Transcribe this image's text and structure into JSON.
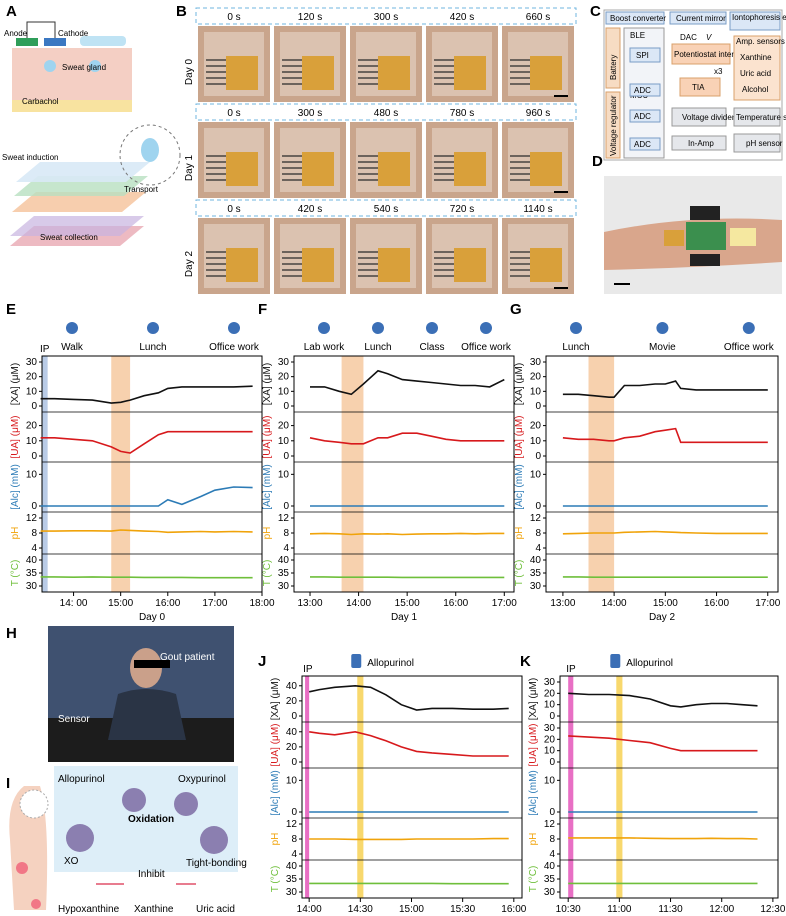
{
  "panels": {
    "A": {
      "label": "A",
      "anode": "Anode",
      "cathode": "Cathode",
      "sweat_gland": "Sweat gland",
      "carbachol": "Carbachol",
      "sweat_induction": "Sweat induction",
      "transport": "Transport",
      "sweat_collection": "Sweat collection"
    },
    "B": {
      "label": "B",
      "rows": [
        {
          "day": "Day 0",
          "times": [
            "0 s",
            "120 s",
            "300 s",
            "420 s",
            "660 s"
          ]
        },
        {
          "day": "Day 1",
          "times": [
            "0 s",
            "300 s",
            "480 s",
            "780 s",
            "960 s"
          ]
        },
        {
          "day": "Day 2",
          "times": [
            "0 s",
            "420 s",
            "540 s",
            "720 s",
            "1140 s"
          ]
        }
      ]
    },
    "C": {
      "label": "C",
      "boost": "Boost converter",
      "mirror": "Current mirror",
      "ionto": "Iontophoresis electrodes",
      "battery": "Battery",
      "ble": "BLE",
      "dac": "DAC",
      "vsp": "V",
      "spi": "SPI",
      "potentiostat": "Potentiostat interface",
      "x3": "x3",
      "amp": "Amp. sensors",
      "xanthine": "Xanthine",
      "uric": "Uric acid",
      "alcohol": "Alcohol",
      "tia": "TIA",
      "mcu": "MCU",
      "adc": "ADC",
      "vreg": "Voltage regulator",
      "vdiv": "Voltage divider",
      "temp": "Temperature sensor",
      "inamp": "In-Amp",
      "ph": "pH sensor"
    },
    "D": {
      "label": "D"
    },
    "E": {
      "label": "E",
      "ip": "IP",
      "activities": [
        "Walk",
        "Lunch",
        "Office work"
      ],
      "xlabel": "Day 0",
      "xticks": [
        "14: 00",
        "15:00",
        "16:00",
        "17:00",
        "18:00"
      ]
    },
    "F": {
      "label": "F",
      "activities": [
        "Lab work",
        "Lunch",
        "Class",
        "Office work"
      ],
      "xlabel": "Day 1",
      "xticks": [
        "13:00",
        "14:00",
        "15:00",
        "16:00",
        "17:00"
      ]
    },
    "G": {
      "label": "G",
      "activities": [
        "Lunch",
        "Movie",
        "Office work"
      ],
      "xlabel": "Day 2",
      "xticks": [
        "13:00",
        "14:00",
        "15:00",
        "16:00",
        "17:00"
      ]
    },
    "H": {
      "label": "H",
      "gout": "Gout patient",
      "sensor": "Sensor"
    },
    "I": {
      "label": "I",
      "allopurinol": "Allopurinol",
      "oxypurinol": "Oxypurinol",
      "oxidation": "Oxidation",
      "xo": "XO",
      "tight": "Tight-bonding",
      "inhibit": "Inhibit",
      "hypo": "Hypoxanthine",
      "xanthine": "Xanthine",
      "uric": "Uric acid"
    },
    "J": {
      "label": "J",
      "ip": "IP",
      "drug": "Allopurinol",
      "xticks": [
        "14:00",
        "14:30",
        "15:00",
        "15:30",
        "16:00"
      ]
    },
    "K": {
      "label": "K",
      "ip": "IP",
      "drug": "Allopurinol",
      "xticks": [
        "10:30",
        "11:00",
        "11:30",
        "12:00",
        "12:30"
      ]
    }
  },
  "axis_labels": {
    "xa": "[XA] (μM)",
    "ua": "[UA] (μM)",
    "alc": "[Alc] (mM)",
    "ph": "pH",
    "t": "T (°C)"
  },
  "colors": {
    "xa": "#111111",
    "ua": "#d7191c",
    "alc": "#2c7bb6",
    "ph": "#f0a30a",
    "t": "#6fbf3b",
    "lunch": "#f6c9a0",
    "ip_e": "#b9cbe6",
    "ip_j": "#e86fc4",
    "drug": "#f7d154"
  },
  "chart_data": [
    {
      "panel": "E",
      "type": "line",
      "yticks": {
        "xa": [
          "30",
          "20",
          "10",
          "0"
        ],
        "ua": [
          "20",
          "10",
          "0"
        ],
        "alc": [
          "10",
          "0"
        ],
        "ph": [
          "12",
          "8",
          "4"
        ],
        "t": [
          "40",
          "35",
          "30"
        ]
      },
      "x": [
        13.3,
        13.6,
        14.0,
        14.4,
        14.8,
        15.0,
        15.2,
        15.5,
        15.8,
        16.0,
        16.3,
        16.7,
        17.0,
        17.4,
        17.8
      ],
      "series": [
        {
          "key": "xa",
          "ylim": [
            0,
            30
          ],
          "values": [
            5,
            5,
            4.5,
            4,
            2,
            2.5,
            4,
            7,
            9,
            12,
            13,
            13,
            13,
            13,
            13.5
          ]
        },
        {
          "key": "ua",
          "ylim": [
            0,
            25
          ],
          "values": [
            12,
            12,
            11,
            10,
            6,
            3,
            2,
            8,
            14,
            16,
            16,
            16,
            16,
            16,
            16
          ]
        },
        {
          "key": "alc",
          "ylim": [
            0,
            12
          ],
          "values": [
            0,
            0,
            0,
            0,
            0,
            0,
            0,
            0,
            0,
            2,
            0.5,
            3,
            5,
            6,
            5.8
          ]
        },
        {
          "key": "ph",
          "ylim": [
            4,
            12
          ],
          "values": [
            8.5,
            8.5,
            8.6,
            8.6,
            8.5,
            8.8,
            8.7,
            8.5,
            8.4,
            8.2,
            8.3,
            8.4,
            8.3,
            8.4,
            8.3
          ]
        },
        {
          "key": "t",
          "ylim": [
            30,
            40
          ],
          "values": [
            33.5,
            33.5,
            33.4,
            33.5,
            33.4,
            33.4,
            33.4,
            33.3,
            33.3,
            33.3,
            33.3,
            33.2,
            33.2,
            33.2,
            33.2
          ]
        }
      ]
    },
    {
      "panel": "F",
      "type": "line",
      "yticks": {
        "xa": [
          "30",
          "20",
          "10",
          "0"
        ],
        "ua": [
          "20",
          "10",
          "0"
        ],
        "alc": [
          "10",
          "0"
        ],
        "ph": [
          "12",
          "8",
          "4"
        ],
        "t": [
          "40",
          "35",
          "30"
        ]
      },
      "x": [
        13.0,
        13.3,
        13.6,
        13.85,
        14.1,
        14.4,
        14.6,
        14.9,
        15.2,
        15.5,
        15.8,
        16.1,
        16.4,
        16.7,
        17.0
      ],
      "series": [
        {
          "key": "xa",
          "ylim": [
            0,
            30
          ],
          "values": [
            13,
            13,
            10,
            8,
            15,
            24,
            22,
            18,
            17,
            16,
            15,
            14,
            14,
            13,
            18
          ]
        },
        {
          "key": "ua",
          "ylim": [
            0,
            25
          ],
          "values": [
            12,
            10,
            9,
            8,
            8,
            12,
            12,
            15,
            15,
            13,
            11,
            10,
            10,
            10,
            10
          ]
        },
        {
          "key": "alc",
          "ylim": [
            0,
            12
          ],
          "values": [
            0,
            0,
            0,
            0,
            0,
            0,
            0,
            0,
            0,
            0,
            0,
            0,
            0,
            0,
            0
          ]
        },
        {
          "key": "ph",
          "ylim": [
            4,
            12
          ],
          "values": [
            7.8,
            7.9,
            7.8,
            7.6,
            7.8,
            7.7,
            7.8,
            7.6,
            7.7,
            7.8,
            7.8,
            7.9,
            7.8,
            7.9,
            7.9
          ]
        },
        {
          "key": "t",
          "ylim": [
            30,
            40
          ],
          "values": [
            33.5,
            33.5,
            33.4,
            33.4,
            33.4,
            33.4,
            33.4,
            33.3,
            33.3,
            33.3,
            33.3,
            33.3,
            33.3,
            33.3,
            33.3
          ]
        }
      ]
    },
    {
      "panel": "G",
      "type": "line",
      "yticks": {
        "xa": [
          "30",
          "20",
          "10",
          "0"
        ],
        "ua": [
          "20",
          "10",
          "0"
        ],
        "alc": [
          "10",
          "0"
        ],
        "ph": [
          "12",
          "8",
          "4"
        ],
        "t": [
          "40",
          "35",
          "30"
        ]
      },
      "x": [
        13.0,
        13.3,
        13.6,
        13.9,
        14.0,
        14.2,
        14.5,
        14.8,
        15.0,
        15.2,
        15.3,
        15.6,
        16.0,
        16.5,
        17.0
      ],
      "series": [
        {
          "key": "xa",
          "ylim": [
            0,
            30
          ],
          "values": [
            8,
            8,
            7,
            6,
            6,
            14,
            14,
            15,
            15,
            17,
            12,
            11,
            11,
            11,
            11
          ]
        },
        {
          "key": "ua",
          "ylim": [
            0,
            25
          ],
          "values": [
            12,
            11,
            11,
            10,
            10,
            12,
            13,
            16,
            17,
            18,
            9,
            9,
            9,
            9,
            9
          ]
        },
        {
          "key": "alc",
          "ylim": [
            0,
            12
          ],
          "values": [
            0,
            0,
            0,
            0,
            0,
            0,
            0,
            0,
            0,
            0,
            0,
            0,
            0,
            0,
            0
          ]
        },
        {
          "key": "ph",
          "ylim": [
            4,
            12
          ],
          "values": [
            7.8,
            7.9,
            8,
            8,
            8,
            8.2,
            8.3,
            8.4,
            8.3,
            8.2,
            8.1,
            8,
            7.9,
            7.9,
            7.9
          ]
        },
        {
          "key": "t",
          "ylim": [
            30,
            40
          ],
          "values": [
            33.5,
            33.5,
            33.4,
            33.4,
            33.4,
            33.4,
            33.4,
            33.4,
            33.4,
            33.4,
            33.4,
            33.4,
            33.4,
            33.4,
            33.4
          ]
        }
      ]
    },
    {
      "panel": "J",
      "type": "line",
      "yticks": {
        "xa": [
          "40",
          "20",
          "0"
        ],
        "ua": [
          "40",
          "20",
          "0"
        ],
        "alc": [
          "10",
          "0"
        ],
        "ph": [
          "12",
          "8",
          "4"
        ],
        "t": [
          "40",
          "35",
          "30"
        ]
      },
      "x": [
        14.0,
        14.1,
        14.25,
        14.45,
        14.6,
        14.75,
        14.9,
        15.05,
        15.2,
        15.4,
        15.6,
        15.8,
        15.95
      ],
      "series": [
        {
          "key": "xa",
          "ylim": [
            0,
            45
          ],
          "values": [
            32,
            35,
            38,
            40,
            38,
            28,
            15,
            8,
            10,
            10,
            9,
            9,
            10
          ]
        },
        {
          "key": "ua",
          "ylim": [
            0,
            45
          ],
          "values": [
            40,
            38,
            36,
            40,
            35,
            28,
            20,
            14,
            12,
            10,
            8,
            8,
            8
          ]
        },
        {
          "key": "alc",
          "ylim": [
            0,
            12
          ],
          "values": [
            0,
            0,
            0,
            0,
            0,
            0,
            0,
            0,
            0,
            0,
            0,
            0,
            0
          ]
        },
        {
          "key": "ph",
          "ylim": [
            4,
            12
          ],
          "values": [
            8,
            8,
            8,
            7.9,
            7.9,
            7.9,
            7.9,
            8,
            8,
            8,
            8,
            8.1,
            8.1
          ]
        },
        {
          "key": "t",
          "ylim": [
            30,
            40
          ],
          "values": [
            33.3,
            33.3,
            33.3,
            33.3,
            33.3,
            33.3,
            33.3,
            33.3,
            33.3,
            33.2,
            33.2,
            33.2,
            33.2
          ]
        }
      ]
    },
    {
      "panel": "K",
      "type": "line",
      "yticks": {
        "xa": [
          "30",
          "20",
          "10",
          "0"
        ],
        "ua": [
          "30",
          "20",
          "10",
          "0"
        ],
        "alc": [
          "10",
          "0"
        ],
        "ph": [
          "12",
          "8",
          "4"
        ],
        "t": [
          "40",
          "35",
          "30"
        ]
      },
      "x": [
        10.5,
        10.7,
        10.9,
        11.1,
        11.3,
        11.5,
        11.6,
        11.75,
        11.9,
        12.05,
        12.2,
        12.35
      ],
      "series": [
        {
          "key": "xa",
          "ylim": [
            0,
            30
          ],
          "values": [
            20,
            19,
            19,
            18,
            15,
            9,
            8,
            10,
            11,
            11,
            10,
            9
          ]
        },
        {
          "key": "ua",
          "ylim": [
            0,
            30
          ],
          "values": [
            23,
            22,
            21,
            19,
            17,
            12,
            10,
            10,
            10,
            10,
            10,
            10
          ]
        },
        {
          "key": "alc",
          "ylim": [
            0,
            12
          ],
          "values": [
            0,
            0,
            0,
            0,
            0,
            0,
            0,
            0,
            0,
            0,
            0,
            0
          ]
        },
        {
          "key": "ph",
          "ylim": [
            4,
            12
          ],
          "values": [
            8.3,
            8.3,
            8.3,
            8.3,
            8.2,
            8.1,
            8.1,
            8.1,
            8.2,
            8.1,
            8.1,
            8
          ]
        },
        {
          "key": "t",
          "ylim": [
            30,
            40
          ],
          "values": [
            33.3,
            33.3,
            33.3,
            33.3,
            33.3,
            33.3,
            33.3,
            33.3,
            33.3,
            33.3,
            33.3,
            33.3
          ]
        }
      ]
    }
  ]
}
